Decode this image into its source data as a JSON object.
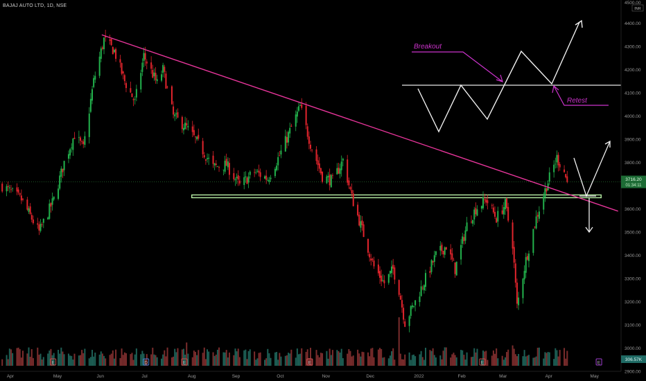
{
  "header": {
    "title": "BAJAJ AUTO LTD, 1D, NSE"
  },
  "currency": "INR",
  "colors": {
    "up": "#22b14c",
    "down": "#e0242c",
    "trendline": "#e8359b",
    "annotation": "#cc33cc",
    "support": "#b9f1a7",
    "price_line": "#2d8a3e",
    "axis_text": "#9a9a9a",
    "bg": "#000000"
  },
  "chart_data": {
    "type": "candlestick",
    "ylim": [
      2900,
      4500
    ],
    "y_ticks": [
      2900,
      3000,
      3100,
      3200,
      3300,
      3400,
      3500,
      3600,
      3700,
      3800,
      3900,
      4000,
      4100,
      4200,
      4300,
      4400,
      4500
    ],
    "y_tick_labels": [
      "2900.00",
      "3000.00",
      "3100.00",
      "3200.00",
      "3300.00",
      "3400.00",
      "3500.00",
      "3600.00",
      "3700.00",
      "3800.00",
      "3900.00",
      "4000.00",
      "4100.00",
      "4200.00",
      "4300.00",
      "4400.00",
      "4500.00"
    ],
    "x_ticks": [
      {
        "label": "Apr",
        "date": "2021-04-01"
      },
      {
        "label": "May",
        "date": "2021-05-03"
      },
      {
        "label": "Jun",
        "date": "2021-06-01"
      },
      {
        "label": "Jul",
        "date": "2021-07-01"
      },
      {
        "label": "Aug",
        "date": "2021-08-02"
      },
      {
        "label": "Sep",
        "date": "2021-09-01"
      },
      {
        "label": "Oct",
        "date": "2021-10-01"
      },
      {
        "label": "Nov",
        "date": "2021-11-01"
      },
      {
        "label": "Dec",
        "date": "2021-12-01"
      },
      {
        "label": "2022",
        "date": "2022-01-03"
      },
      {
        "label": "Feb",
        "date": "2022-02-01"
      },
      {
        "label": "Mar",
        "date": "2022-03-01"
      },
      {
        "label": "Apr",
        "date": "2022-04-01"
      },
      {
        "label": "May",
        "date": "2022-05-02"
      }
    ],
    "date_range": [
      "2021-03-25",
      "2022-05-20"
    ],
    "last_bar_date": "2022-04-13",
    "close_path": [
      [
        "2021-03-26",
        3700
      ],
      [
        "2021-04-08",
        3640
      ],
      [
        "2021-04-20",
        3500
      ],
      [
        "2021-04-30",
        3640
      ],
      [
        "2021-05-07",
        3800
      ],
      [
        "2021-05-14",
        3920
      ],
      [
        "2021-05-20",
        3860
      ],
      [
        "2021-05-27",
        4150
      ],
      [
        "2021-06-03",
        4330
      ],
      [
        "2021-06-10",
        4280
      ],
      [
        "2021-06-17",
        4150
      ],
      [
        "2021-06-24",
        4060
      ],
      [
        "2021-06-30",
        4260
      ],
      [
        "2021-07-09",
        4140
      ],
      [
        "2021-07-13",
        4200
      ],
      [
        "2021-07-20",
        4000
      ],
      [
        "2021-07-29",
        3950
      ],
      [
        "2021-08-06",
        3880
      ],
      [
        "2021-08-16",
        3780
      ],
      [
        "2021-08-25",
        3790
      ],
      [
        "2021-09-03",
        3700
      ],
      [
        "2021-09-13",
        3760
      ],
      [
        "2021-09-22",
        3730
      ],
      [
        "2021-09-30",
        3830
      ],
      [
        "2021-10-08",
        3950
      ],
      [
        "2021-10-14",
        4040
      ],
      [
        "2021-10-21",
        3880
      ],
      [
        "2021-10-29",
        3740
      ],
      [
        "2021-11-05",
        3720
      ],
      [
        "2021-11-12",
        3810
      ],
      [
        "2021-11-18",
        3650
      ],
      [
        "2021-11-25",
        3510
      ],
      [
        "2021-12-03",
        3350
      ],
      [
        "2021-12-10",
        3280
      ],
      [
        "2021-12-16",
        3340
      ],
      [
        "2021-12-20",
        3250
      ],
      [
        "2021-12-24",
        3110
      ],
      [
        "2021-12-31",
        3200
      ],
      [
        "2022-01-07",
        3300
      ],
      [
        "2022-01-14",
        3400
      ],
      [
        "2022-01-21",
        3440
      ],
      [
        "2022-01-27",
        3340
      ],
      [
        "2022-02-04",
        3530
      ],
      [
        "2022-02-10",
        3600
      ],
      [
        "2022-02-17",
        3640
      ],
      [
        "2022-02-24",
        3560
      ],
      [
        "2022-03-02",
        3620
      ],
      [
        "2022-03-07",
        3450
      ],
      [
        "2022-03-10",
        3180
      ],
      [
        "2022-03-16",
        3380
      ],
      [
        "2022-03-23",
        3560
      ],
      [
        "2022-03-30",
        3700
      ],
      [
        "2022-04-06",
        3820
      ],
      [
        "2022-04-11",
        3760
      ],
      [
        "2022-04-13",
        3716.2
      ]
    ],
    "last_price": {
      "value": "3716.20",
      "countdown": "01:34:11"
    },
    "trendline": {
      "from": [
        "2021-06-02",
        4350
      ],
      "to": [
        "2022-05-18",
        3590
      ]
    },
    "support_zone": {
      "from": "2021-08-02",
      "to": "2022-04-13",
      "low": 3648,
      "high": 3660
    },
    "volume": {
      "last_label": "306.57K",
      "ylim": [
        0,
        1000
      ],
      "spikes": [
        [
          "2021-07-29",
          480
        ],
        [
          "2021-12-20",
          1000
        ],
        [
          "2022-03-07",
          420
        ]
      ]
    },
    "events": [
      {
        "date": "2021-04-30",
        "glyph": "E"
      },
      {
        "date": "2021-07-02",
        "glyph": "D"
      },
      {
        "date": "2021-07-28",
        "glyph": "E"
      },
      {
        "date": "2021-10-21",
        "glyph": "E"
      },
      {
        "date": "2022-02-15",
        "glyph": "E"
      },
      {
        "date": "2022-05-05",
        "glyph": "E"
      }
    ],
    "annotations": [
      {
        "text": "Breakout"
      },
      {
        "text": "Retest"
      }
    ]
  }
}
